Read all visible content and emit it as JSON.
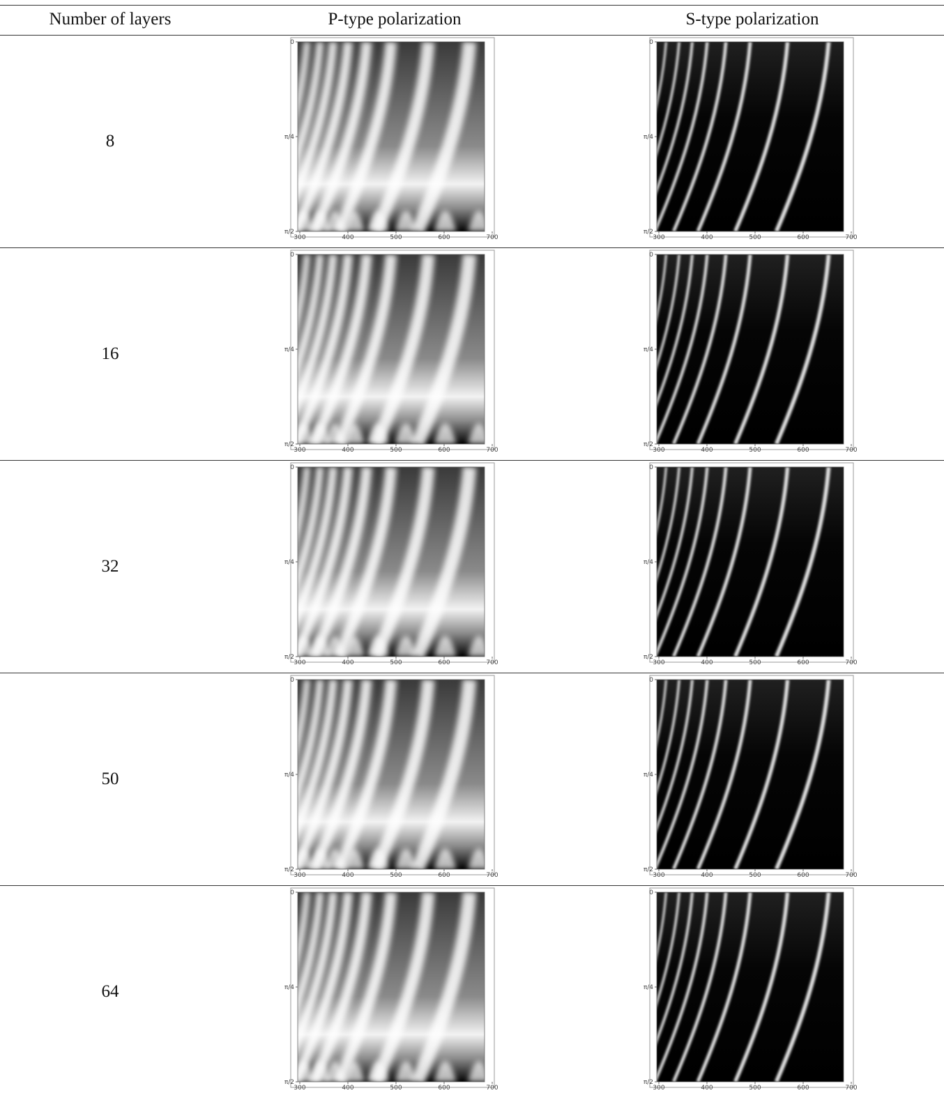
{
  "table": {
    "header": [
      "Number of layers",
      "P-type polarization",
      "S-type polarization"
    ],
    "rows": [
      [
        "8"
      ],
      [
        "16"
      ],
      [
        "32"
      ],
      [
        "50"
      ],
      [
        "64"
      ]
    ]
  },
  "plot_axes": {
    "yticks": [
      "0",
      "π/4",
      "π/2"
    ],
    "xticks": [
      "300",
      "400",
      "500",
      "600",
      "700"
    ]
  }
}
